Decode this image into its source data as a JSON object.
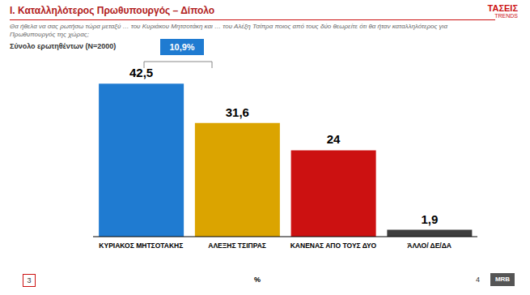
{
  "chart_data": {
    "type": "bar",
    "title": "I. Καταλληλότερος Πρωθυπουργός – Δίπολο",
    "subtitle": "Θα ήθελα να σας ρωτήσω τώρα μεταξύ … του Κυριάκου Μητσοτάκη και … του Αλέξη Τσίπρα ποιος από τους δύο θεωρείτε ότι θα ήταν καταλληλότερος για Πρωθυπουργός της χώρας;",
    "xlabel": "%",
    "annotations": {
      "base": "Σύνολο ερωτηθέντων (N=2000)",
      "difference": "10,9%",
      "logo": "ΤΑΣΕΙΣ",
      "logo_sub": "TRENDS",
      "footer_logo": "MRB",
      "page_left": "3",
      "page_right": "4"
    },
    "categories": [
      "ΚΥΡΙΑΚΟΣ ΜΗΤΣΟΤΑΚΗΣ",
      "ΑΛΕΞΗΣ ΤΣΙΠΡΑΣ",
      "ΚΑΝΕΝΑΣ ΑΠΟ ΤΟΥΣ ΔΥΟ",
      "ΆΛΛΟ/ ΔΕ/ΔΑ"
    ],
    "values": [
      42.5,
      31.6,
      24,
      1.9
    ],
    "value_labels": [
      "42,5",
      "31,6",
      "24",
      "1,9"
    ],
    "colors": [
      "#1f7bd1",
      "#dba400",
      "#cc1111",
      "#3d3d3d"
    ],
    "ylim": [
      0,
      50
    ],
    "grid": false,
    "data_labels": true,
    "tick_labels": "x"
  }
}
